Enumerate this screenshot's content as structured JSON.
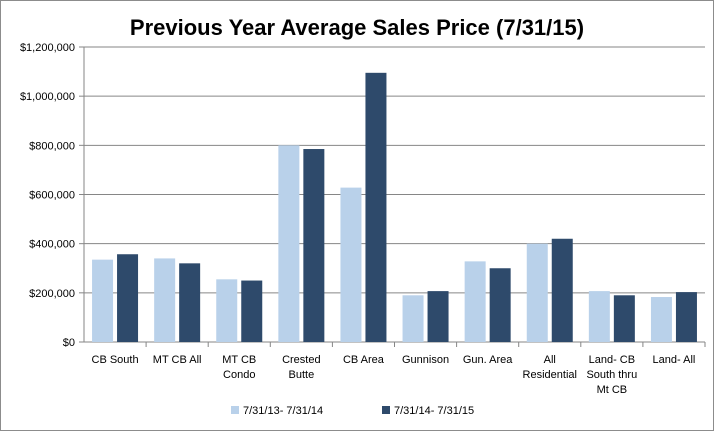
{
  "chart_data": {
    "type": "bar",
    "title": "Previous Year Average Sales Price (7/31/15)",
    "xlabel": "",
    "ylabel": "",
    "ylim": [
      0,
      1200000
    ],
    "yticks": [
      0,
      200000,
      400000,
      600000,
      800000,
      1000000,
      1200000
    ],
    "ytick_labels": [
      "$0",
      "$200,000",
      "$400,000",
      "$600,000",
      "$800,000",
      "$1,000,000",
      "$1,200,000"
    ],
    "grid": true,
    "legend_position": "bottom",
    "categories": [
      [
        "CB South"
      ],
      [
        "MT CB All"
      ],
      [
        "MT CB",
        "Condo"
      ],
      [
        "Crested",
        "Butte"
      ],
      [
        "CB Area"
      ],
      [
        "Gunnison"
      ],
      [
        "Gun. Area"
      ],
      [
        "All",
        "Residential"
      ],
      [
        "Land- CB",
        "South thru",
        "Mt CB"
      ],
      [
        "Land- All"
      ]
    ],
    "series": [
      {
        "name": "7/31/13- 7/31/14",
        "color": "#b9d1ea",
        "values": [
          335000,
          340000,
          255000,
          800000,
          628000,
          190000,
          328000,
          400000,
          207000,
          183000
        ]
      },
      {
        "name": "7/31/14- 7/31/15",
        "color": "#2e4a6b",
        "values": [
          357000,
          320000,
          250000,
          785000,
          1095000,
          207000,
          300000,
          420000,
          190000,
          203000
        ]
      }
    ]
  }
}
